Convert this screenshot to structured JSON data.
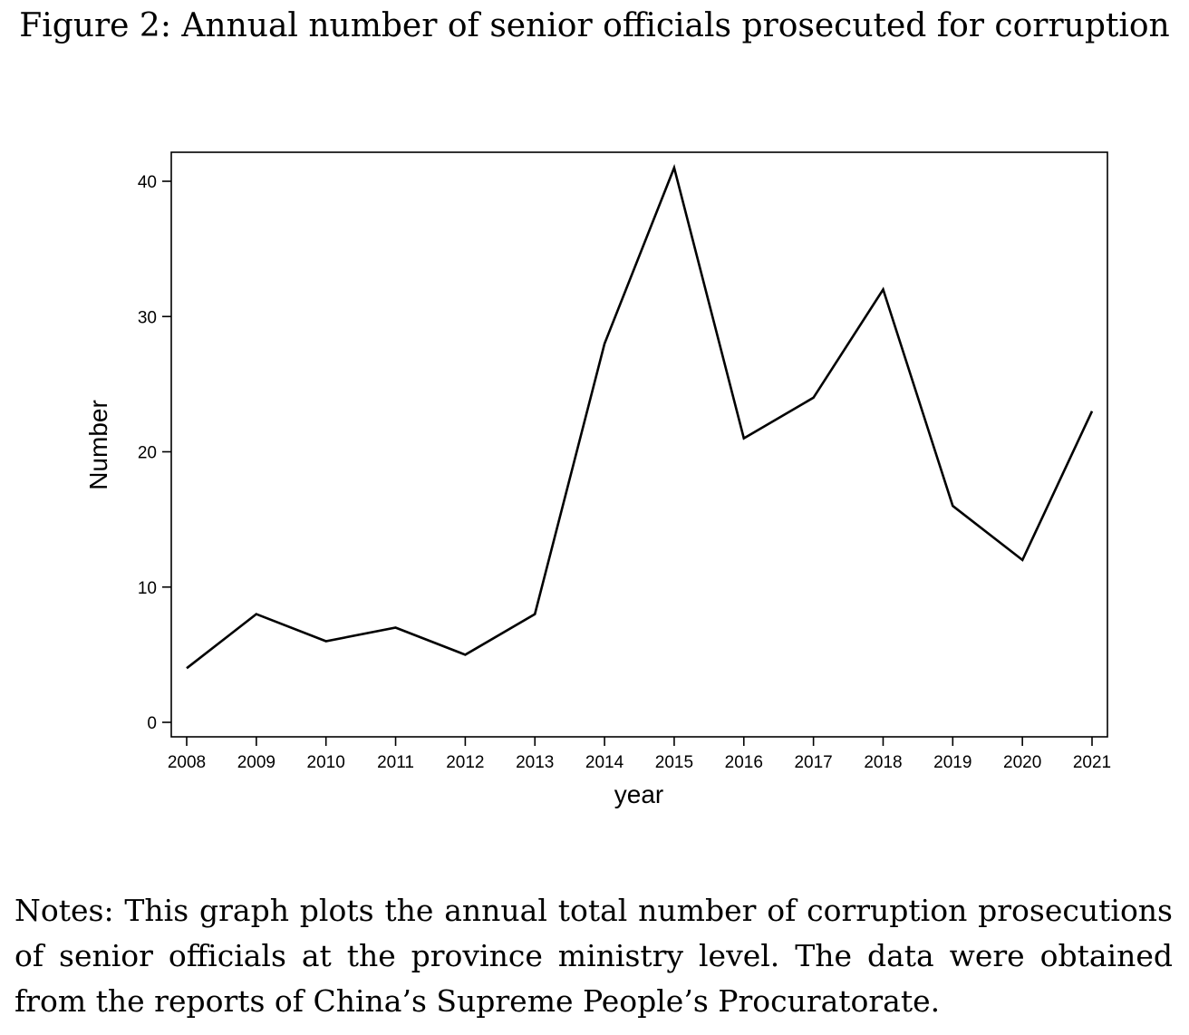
{
  "figure": {
    "title": "Figure 2: Annual number of senior officials prosecuted for corruption",
    "notes": "Notes: This graph plots the annual total number of corruption prosecutions of senior officials at the province ministry level. The data were obtained from the reports of China’s Supreme People’s Procuratorate."
  },
  "chart_data": {
    "type": "line",
    "title": "",
    "xlabel": "year",
    "ylabel": "Number",
    "x": [
      2008,
      2009,
      2010,
      2011,
      2012,
      2013,
      2014,
      2015,
      2016,
      2017,
      2018,
      2019,
      2020,
      2021
    ],
    "series": [
      {
        "values": [
          4,
          8,
          6,
          7,
          5,
          8,
          28,
          41,
          21,
          24,
          32,
          16,
          12,
          23
        ]
      }
    ],
    "xticks": [
      "2008",
      "2009",
      "2010",
      "2011",
      "2012",
      "2013",
      "2014",
      "2015",
      "2016",
      "2017",
      "2018",
      "2019",
      "2020",
      "2021"
    ],
    "yticks": [
      "0",
      "10",
      "20",
      "30",
      "40"
    ],
    "ylim": [
      0,
      40
    ],
    "grid": false,
    "line_color": "#000000"
  }
}
